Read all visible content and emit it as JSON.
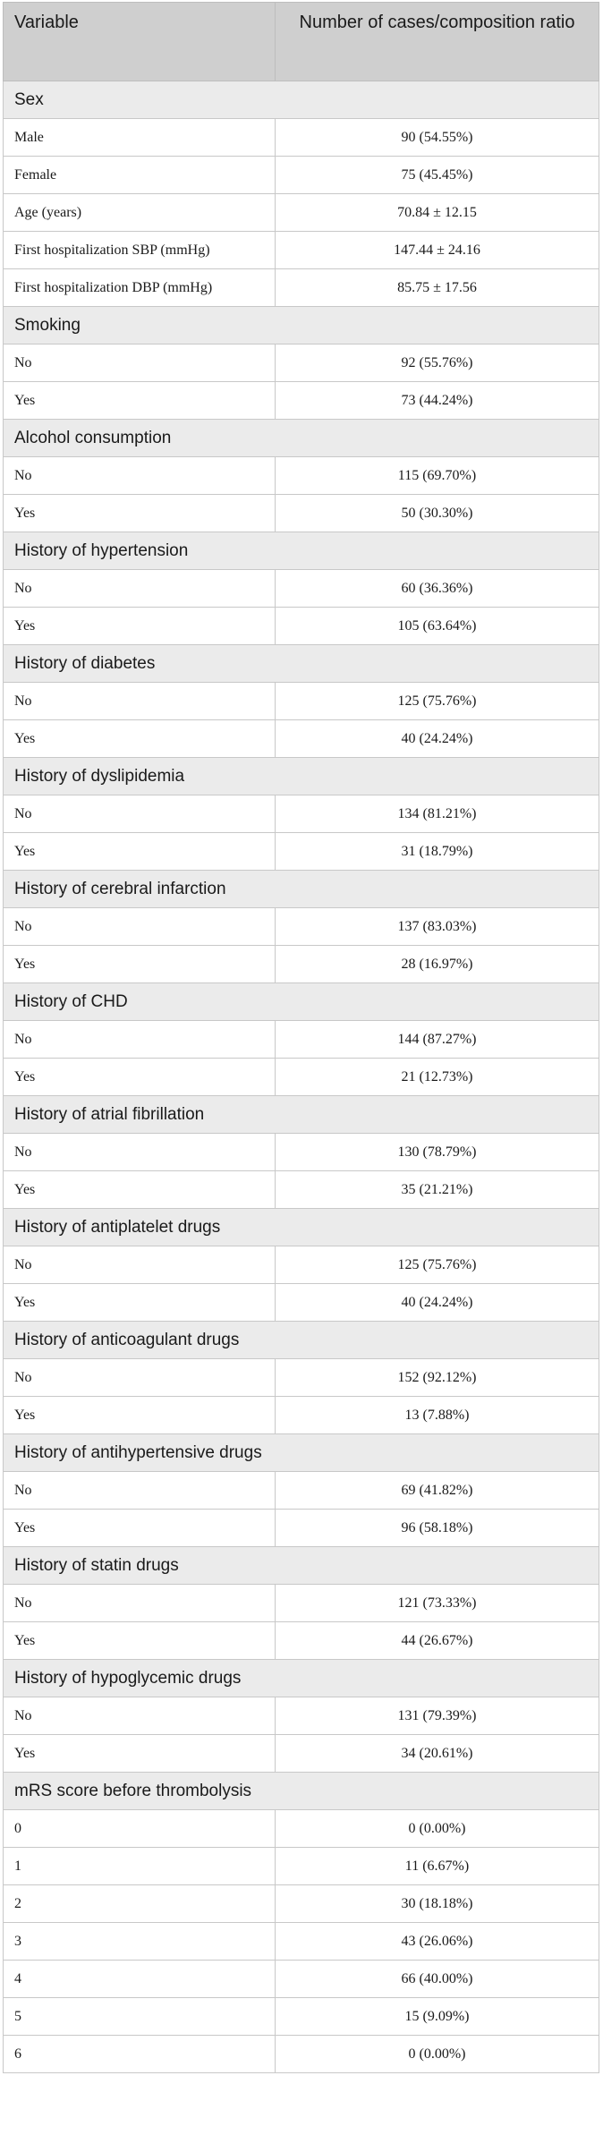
{
  "header": {
    "variable": "Variable",
    "value": "Number of cases/composition ratio"
  },
  "sections": [
    {
      "title": "Sex",
      "rows": [
        {
          "label": "Male",
          "value": "90 (54.55%)"
        },
        {
          "label": "Female",
          "value": "75 (45.45%)"
        },
        {
          "label": "Age (years)",
          "value": "70.84 ± 12.15"
        },
        {
          "label": "First hospitalization SBP (mmHg)",
          "value": "147.44 ± 24.16"
        },
        {
          "label": "First hospitalization DBP (mmHg)",
          "value": "85.75 ± 17.56"
        }
      ]
    },
    {
      "title": "Smoking",
      "rows": [
        {
          "label": "No",
          "value": "92 (55.76%)"
        },
        {
          "label": "Yes",
          "value": "73 (44.24%)"
        }
      ]
    },
    {
      "title": "Alcohol consumption",
      "rows": [
        {
          "label": "No",
          "value": "115 (69.70%)"
        },
        {
          "label": "Yes",
          "value": "50 (30.30%)"
        }
      ]
    },
    {
      "title": "History of hypertension",
      "rows": [
        {
          "label": "No",
          "value": "60 (36.36%)"
        },
        {
          "label": "Yes",
          "value": "105 (63.64%)"
        }
      ]
    },
    {
      "title": "History of diabetes",
      "rows": [
        {
          "label": "No",
          "value": "125 (75.76%)"
        },
        {
          "label": "Yes",
          "value": "40 (24.24%)"
        }
      ]
    },
    {
      "title": "History of dyslipidemia",
      "rows": [
        {
          "label": "No",
          "value": "134 (81.21%)"
        },
        {
          "label": "Yes",
          "value": "31 (18.79%)"
        }
      ]
    },
    {
      "title": "History of cerebral infarction",
      "rows": [
        {
          "label": "No",
          "value": "137 (83.03%)"
        },
        {
          "label": "Yes",
          "value": "28 (16.97%)"
        }
      ]
    },
    {
      "title": "History of CHD",
      "rows": [
        {
          "label": "No",
          "value": "144 (87.27%)"
        },
        {
          "label": "Yes",
          "value": "21 (12.73%)"
        }
      ]
    },
    {
      "title": "History of atrial fibrillation",
      "rows": [
        {
          "label": "No",
          "value": "130 (78.79%)"
        },
        {
          "label": "Yes",
          "value": "35 (21.21%)"
        }
      ]
    },
    {
      "title": "History of antiplatelet drugs",
      "rows": [
        {
          "label": "No",
          "value": "125 (75.76%)"
        },
        {
          "label": "Yes",
          "value": "40 (24.24%)"
        }
      ]
    },
    {
      "title": "History of anticoagulant drugs",
      "rows": [
        {
          "label": "No",
          "value": "152 (92.12%)"
        },
        {
          "label": "Yes",
          "value": "13 (7.88%)"
        }
      ]
    },
    {
      "title": "History of antihypertensive drugs",
      "rows": [
        {
          "label": "No",
          "value": "69 (41.82%)"
        },
        {
          "label": "Yes",
          "value": "96 (58.18%)"
        }
      ]
    },
    {
      "title": "History of statin drugs",
      "rows": [
        {
          "label": "No",
          "value": "121 (73.33%)"
        },
        {
          "label": "Yes",
          "value": "44 (26.67%)"
        }
      ]
    },
    {
      "title": "History of hypoglycemic drugs",
      "rows": [
        {
          "label": "No",
          "value": "131 (79.39%)"
        },
        {
          "label": "Yes",
          "value": "34 (20.61%)"
        }
      ]
    },
    {
      "title": "mRS score before thrombolysis",
      "rows": [
        {
          "label": "0",
          "value": "0 (0.00%)"
        },
        {
          "label": "1",
          "value": "11 (6.67%)"
        },
        {
          "label": "2",
          "value": "30 (18.18%)"
        },
        {
          "label": "3",
          "value": "43 (26.06%)"
        },
        {
          "label": "4",
          "value": "66 (40.00%)"
        },
        {
          "label": "5",
          "value": "15 (9.09%)"
        },
        {
          "label": "6",
          "value": "0 (0.00%)"
        }
      ]
    }
  ]
}
